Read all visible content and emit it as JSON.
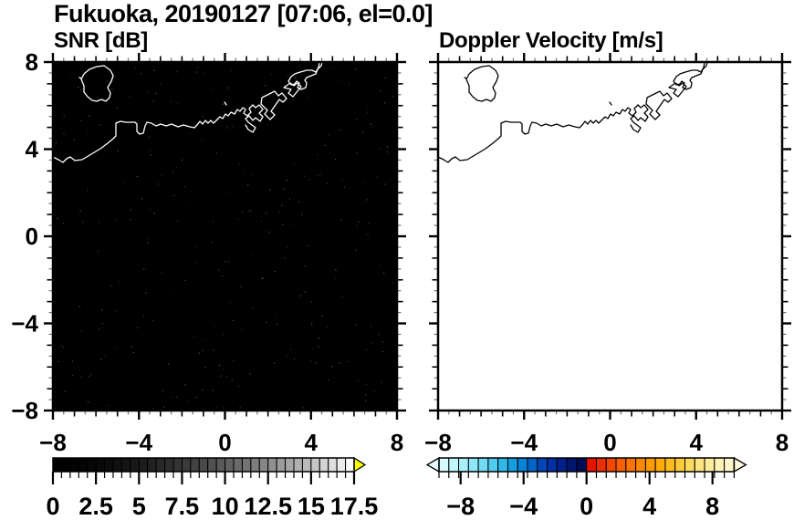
{
  "title": "Fukuoka, 20190127 [07:06, el=0.0]",
  "panels": [
    {
      "id": "snr",
      "label": "SNR [dB]",
      "bg_color": "#000000",
      "coast_color": "#ffffff",
      "show_y_labels": true,
      "noise_speckle": true
    },
    {
      "id": "vel",
      "label": "Doppler Velocity [m/s]",
      "bg_color": "#ffffff",
      "coast_color": "#000000",
      "show_y_labels": false,
      "noise_speckle": false
    }
  ],
  "axes": {
    "range": [
      -8,
      8
    ],
    "x_tick_values": [
      -8,
      -4,
      0,
      4,
      8
    ],
    "x_tick_labels": [
      "−8",
      "−4",
      "0",
      "4",
      "8"
    ],
    "y_tick_values": [
      8,
      4,
      0,
      -4,
      -8
    ],
    "y_tick_labels": [
      "8",
      "4",
      "0",
      "−4",
      "−8"
    ],
    "medium_tick_step": 1,
    "minor_tick_step": 0.5
  },
  "colorbars": [
    {
      "id": "snr",
      "min": 0,
      "max": 17.5,
      "cell_step": 0.5,
      "label_values": [
        0,
        2.5,
        5,
        7.5,
        10,
        12.5,
        15,
        17.5
      ],
      "label_texts": [
        "0",
        "2.5",
        "5",
        "7.5",
        "10",
        "12.5",
        "15",
        "17.5"
      ],
      "major_tick_step": 2.5,
      "under_arrow_color": null,
      "over_arrow_color": "#ffff00",
      "cell_colors": [
        "#000000",
        "#010101",
        "#020202",
        "#040404",
        "#060606",
        "#090909",
        "#0c0c0c",
        "#101010",
        "#141414",
        "#181818",
        "#1d1d1d",
        "#222222",
        "#282828",
        "#2e2e2e",
        "#343434",
        "#3b3b3b",
        "#424242",
        "#494949",
        "#515151",
        "#595959",
        "#616161",
        "#6a6a6a",
        "#737373",
        "#7c7c7c",
        "#868686",
        "#909090",
        "#9b9b9b",
        "#a5a5a5",
        "#b0b0b0",
        "#bbbbbb",
        "#c7c7c7",
        "#d3d3d3",
        "#dfdfdf",
        "#ececec",
        "#f9f9f9"
      ]
    },
    {
      "id": "vel",
      "min": -9.375,
      "max": 9.375,
      "cell_step": 0.625,
      "label_values": [
        -8,
        -4,
        0,
        4,
        8
      ],
      "label_texts": [
        "−8",
        "−4",
        "0",
        "4",
        "8"
      ],
      "major_tick_values": [
        -8,
        -4,
        0,
        4,
        8
      ],
      "under_arrow_color": "#e4fcff",
      "over_arrow_color": "#fdf8d8",
      "cell_colors": [
        "#d6fbff",
        "#c2f6fd",
        "#aaf0fb",
        "#8fe8f8",
        "#70dcf4",
        "#50ccee",
        "#30b8e8",
        "#149ee0",
        "#0682d6",
        "#0264c8",
        "#0146b8",
        "#012fa4",
        "#00218c",
        "#001670",
        "#000c54",
        "#e41400",
        "#ee2e00",
        "#f64700",
        "#fb5f00",
        "#ff7400",
        "#ff8800",
        "#ff9a00",
        "#ffab08",
        "#ffbc1e",
        "#ffcb3c",
        "#ffd85e",
        "#ffe37e",
        "#ffeb9c",
        "#fff2b6",
        "#fdf6cc"
      ]
    }
  ],
  "map": {
    "description": "Hakata Bay / Fukuoka coastline with harbor piers and Nokonoshima island",
    "coastline_paths": [
      "M 0,104 L 6,107 L 11,110 L 15,106 L 19,104 L 24,108 L 32,107 L 42,101 L 52,95 L 60,89 L 66,84 L 69,81 L 69,67 L 74,65 L 80,66 L 90,66 L 92,68 L 92,76 L 95,79 L 99,78 L 101,70 L 103,66 L 108,67 L 113,70 L 118,68 L 124,70 L 130,68 L 137,71 L 143,69 L 150,71 L 155,72 L 158,69 L 161,65 L 164,68 L 167,64 L 170,67 L 173,64 L 176,67 L 180,63 L 183,60 L 186,62 L 189,57 L 192,59 L 195,55 L 199,57 L 202,52 L 205,54 L 208,50 L 211,52 L 209,56 L 213,59 L 217,55 L 215,51 L 219,47 L 222,50 L 226,47 L 230,52 L 226,56 L 230,60 L 227,65 L 222,61 L 219,64 L 215,59 L 211,62 L 214,66 L 218,69 L 222,72 L 219,77 L 214,74 L 211,69",
      "M 48,5 L 40,8 L 34,13 L 31,19 L 34,26 L 34,33 L 38,38 L 43,42 L 48,43 L 53,41 L 58,43 L 62,39 L 63,34 L 60,28 L 64,21 L 66,15 L 63,9 L 56,4 Z",
      "M 229,39 L 243,32 L 247,37 L 251,34 L 256,40 L 252,44 L 248,41 L 239,54 L 243,58 L 238,63 L 232,57 L 235,53 L 228,46 Z",
      "M 253,28 L 260,23 L 264,26 L 268,23 L 272,27 L 263,38 L 258,34 L 261,30 Z",
      "M 292,0 L 291,6 L 288,11 L 284,9 L 278,9 L 271,11 L 265,13 L 261,16 L 258,21 L 261,25 L 265,24 L 267,21 L 270,23 L 268,28 L 272,30 L 277,28 L 278,23 L 276,20 L 278,17 L 283,15 L 288,13 L 290,8 L 294,4 L 295,0",
      "M 188,44 L 190,47",
      "M 29,17 L 31,18"
    ]
  },
  "chart_data": [
    {
      "type": "heatmap",
      "title": "SNR [dB]",
      "xlabel": "",
      "ylabel": "",
      "x_range": [
        -8,
        8
      ],
      "y_range": [
        -8,
        8
      ],
      "xticks": [
        -8,
        -4,
        0,
        4,
        8
      ],
      "yticks": [
        8,
        4,
        0,
        -4,
        -8
      ],
      "minor_tick_step": 0.5,
      "field": "signal-to-noise ratio",
      "units": "dB",
      "field_summary": "No echoes: entire domain at ~0 dB (rendered black) with sparse faint receiver-noise speckle",
      "colorbar": {
        "min": 0,
        "max": 17.5,
        "cell_step": 0.5,
        "labels": [
          0,
          2.5,
          5,
          7.5,
          10,
          12.5,
          15,
          17.5
        ],
        "scheme": "black-to-white grayscale, yellow over-range arrow"
      },
      "overlay": "Fukuoka / Hakata Bay coastline drawn in white"
    },
    {
      "type": "heatmap",
      "title": "Doppler Velocity [m/s]",
      "xlabel": "",
      "ylabel": "",
      "x_range": [
        -8,
        8
      ],
      "y_range": [
        -8,
        8
      ],
      "xticks": [
        -8,
        -4,
        0,
        4,
        8
      ],
      "yticks": [
        8,
        4,
        0,
        -4,
        -8
      ],
      "minor_tick_step": 0.5,
      "field": "Doppler velocity",
      "units": "m/s",
      "field_summary": "No valid velocity data: field entirely blank (white)",
      "colorbar": {
        "min": -9.375,
        "max": 9.375,
        "cell_step": 0.625,
        "labels": [
          -8,
          -4,
          0,
          4,
          8
        ],
        "scheme": "pale cyan through blue/navy (negative) to red/orange/yellow/cream (positive), arrows both ends"
      },
      "overlay": "Fukuoka / Hakata Bay coastline drawn in black"
    }
  ]
}
